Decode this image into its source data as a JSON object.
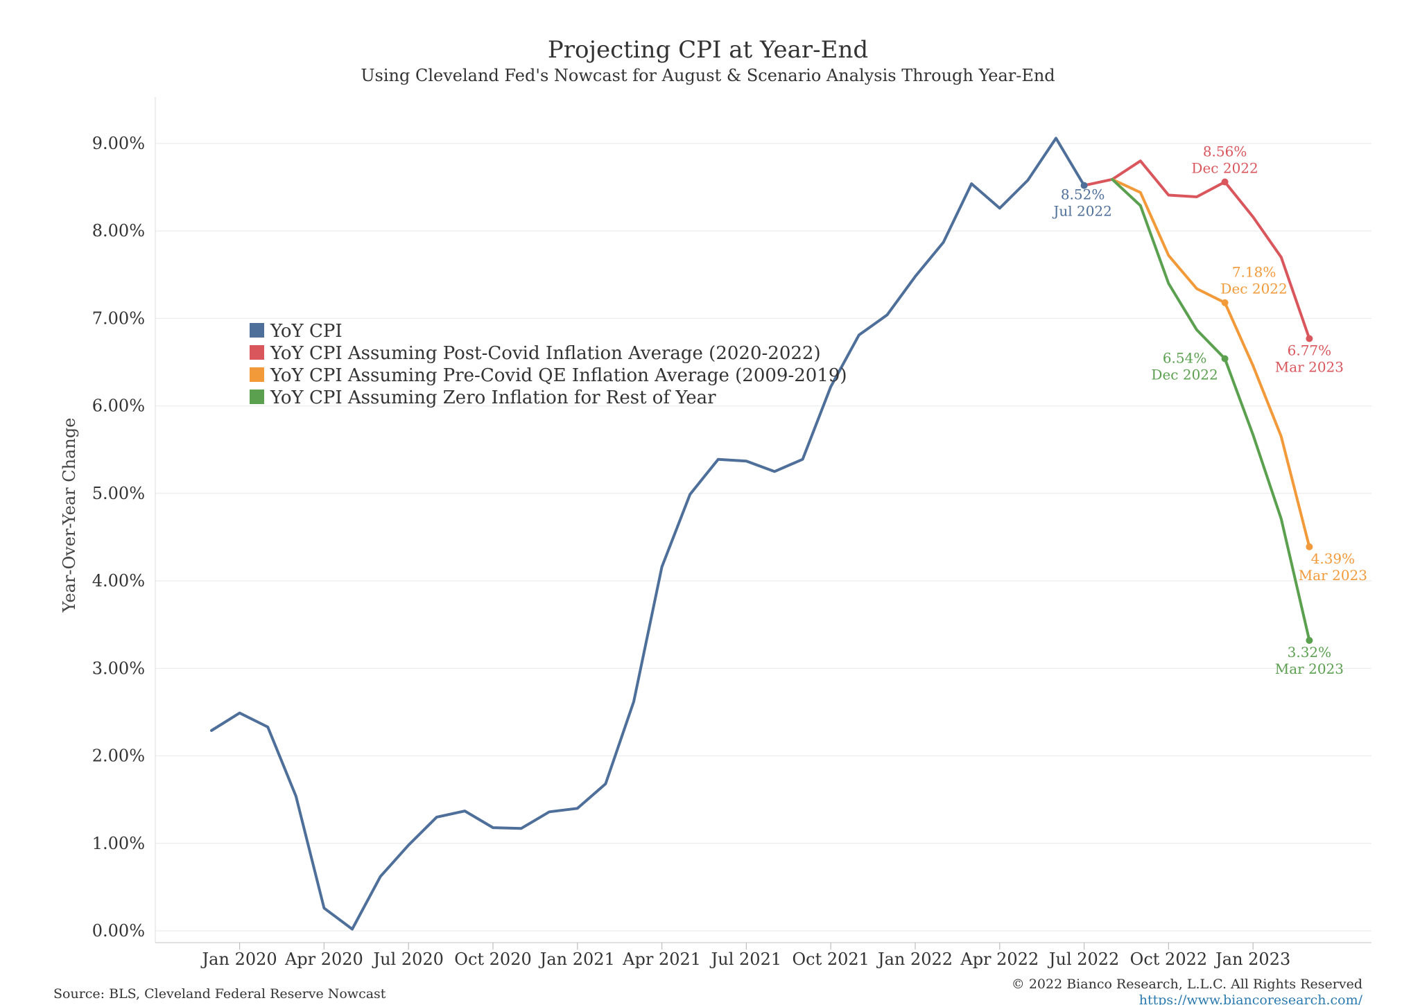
{
  "chart_data": {
    "type": "line",
    "title": "Projecting CPI at Year-End",
    "subtitle": "Using Cleveland Fed's Nowcast for August & Scenario Analysis Through Year-End",
    "ylabel": "Year-Over-Year Change",
    "xlabel": "",
    "ylim": [
      0,
      9.5
    ],
    "y_ticks": [
      "0.00%",
      "1.00%",
      "2.00%",
      "3.00%",
      "4.00%",
      "5.00%",
      "6.00%",
      "7.00%",
      "8.00%",
      "9.00%"
    ],
    "x_ticks": [
      "Jan 2020",
      "Apr 2020",
      "Jul 2020",
      "Oct 2020",
      "Jan 2021",
      "Apr 2021",
      "Jul 2021",
      "Oct 2021",
      "Jan 2022",
      "Apr 2022",
      "Jul 2022",
      "Oct 2022",
      "Jan 2023"
    ],
    "grid": true,
    "legend_position": "upper-left",
    "series": [
      {
        "name": "YoY CPI",
        "color": "#4e6f9a",
        "x": [
          "2019-12",
          "2020-01",
          "2020-02",
          "2020-03",
          "2020-04",
          "2020-05",
          "2020-06",
          "2020-07",
          "2020-08",
          "2020-09",
          "2020-10",
          "2020-11",
          "2020-12",
          "2021-01",
          "2021-02",
          "2021-03",
          "2021-04",
          "2021-05",
          "2021-06",
          "2021-07",
          "2021-08",
          "2021-09",
          "2021-10",
          "2021-11",
          "2021-12",
          "2022-01",
          "2022-02",
          "2022-03",
          "2022-04",
          "2022-05",
          "2022-06",
          "2022-07"
        ],
        "values": [
          2.29,
          2.49,
          2.33,
          1.54,
          0.26,
          0.02,
          0.62,
          0.98,
          1.3,
          1.37,
          1.18,
          1.17,
          1.36,
          1.4,
          1.68,
          2.62,
          4.16,
          4.99,
          5.39,
          5.37,
          5.25,
          5.39,
          6.22,
          6.81,
          7.04,
          7.48,
          7.87,
          8.54,
          8.26,
          8.58,
          9.06,
          8.52
        ]
      },
      {
        "name": "YoY CPI Assuming Post-Covid Inflation Average (2020-2022)",
        "color": "#d9565c",
        "x": [
          "2022-07",
          "2022-08",
          "2022-09",
          "2022-10",
          "2022-11",
          "2022-12",
          "2023-01",
          "2023-02",
          "2023-03"
        ],
        "values": [
          8.52,
          8.59,
          8.8,
          8.41,
          8.39,
          8.56,
          8.16,
          7.7,
          6.77
        ]
      },
      {
        "name": "YoY CPI Assuming Pre-Covid QE Inflation Average (2009-2019)",
        "color": "#f29a3a",
        "x": [
          "2022-08",
          "2022-09",
          "2022-10",
          "2022-11",
          "2022-12",
          "2023-01",
          "2023-02",
          "2023-03"
        ],
        "values": [
          8.59,
          8.44,
          7.72,
          7.34,
          7.18,
          6.46,
          5.65,
          4.39
        ]
      },
      {
        "name": "YoY CPI Assuming Zero Inflation for Rest of Year",
        "color": "#5aa04f",
        "x": [
          "2022-08",
          "2022-09",
          "2022-10",
          "2022-11",
          "2022-12",
          "2023-01",
          "2023-02",
          "2023-03"
        ],
        "values": [
          8.59,
          8.29,
          7.4,
          6.87,
          6.54,
          5.67,
          4.71,
          3.32
        ]
      }
    ],
    "annotations": [
      {
        "series": 0,
        "x": "2022-07",
        "value": "8.52%",
        "date": "Jul 2022",
        "color": "#4e6f9a"
      },
      {
        "series": 1,
        "x": "2022-12",
        "value": "8.56%",
        "date": "Dec 2022",
        "color": "#d9565c"
      },
      {
        "series": 1,
        "x": "2023-03",
        "value": "6.77%",
        "date": "Mar 2023",
        "color": "#d9565c"
      },
      {
        "series": 2,
        "x": "2022-12",
        "value": "7.18%",
        "date": "Dec 2022",
        "color": "#f29a3a"
      },
      {
        "series": 2,
        "x": "2023-03",
        "value": "4.39%",
        "date": "Mar 2023",
        "color": "#f29a3a"
      },
      {
        "series": 3,
        "x": "2022-12",
        "value": "6.54%",
        "date": "Dec 2022",
        "color": "#5aa04f"
      },
      {
        "series": 3,
        "x": "2023-03",
        "value": "3.32%",
        "date": "Mar 2023",
        "color": "#5aa04f"
      }
    ]
  },
  "footer": {
    "source": "Source: BLS, Cleveland Federal Reserve Nowcast",
    "copyright": "© 2022 Bianco Research, L.L.C. All Rights Reserved",
    "url": "https://www.biancoresearch.com/"
  }
}
